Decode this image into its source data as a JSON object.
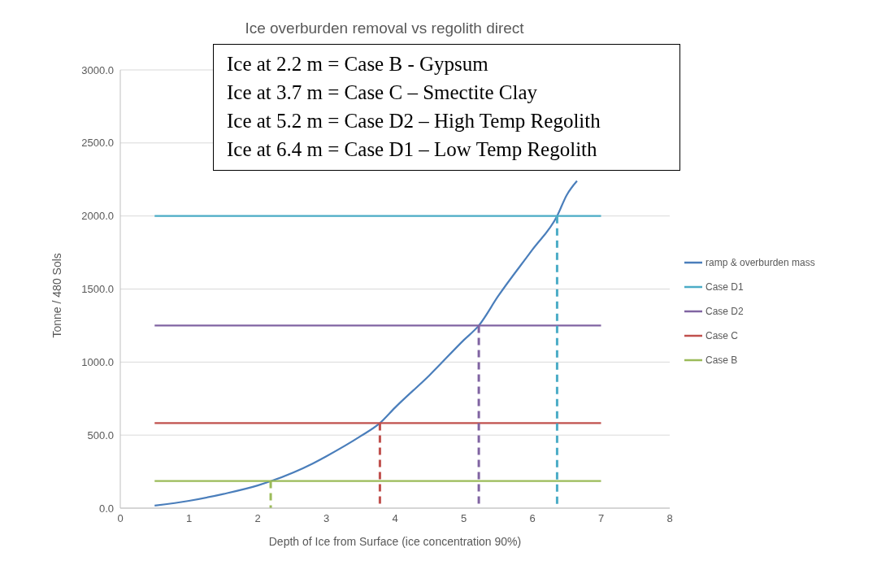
{
  "chart_data": {
    "type": "line",
    "title": "Ice overburden removal vs regolith direct",
    "xlabel": "Depth of Ice from Surface (ice concentration 90%)",
    "ylabel": "Tonne / 480 Sols",
    "xlim": [
      0,
      8
    ],
    "xticks": [
      0,
      1,
      2,
      3,
      4,
      5,
      6,
      7,
      8
    ],
    "ylim": [
      0,
      3000
    ],
    "yticks": [
      {
        "value": 0,
        "label": "0.0"
      },
      {
        "value": 500,
        "label": "500.0"
      },
      {
        "value": 1000,
        "label": "1000.0"
      },
      {
        "value": 1500,
        "label": "1500.0"
      },
      {
        "value": 2000,
        "label": "2000.0"
      },
      {
        "value": 2500,
        "label": "2500.0"
      },
      {
        "value": 3000,
        "label": "3000.0"
      }
    ],
    "grid": "y",
    "legend": "right",
    "marker": "none",
    "series": [
      {
        "name": "ramp & overburden mass",
        "color": "#4a7ebb",
        "x": [
          0.5,
          1.0,
          1.5,
          2.0,
          2.2,
          2.8,
          3.0,
          3.5,
          3.78,
          4.0,
          4.5,
          5.0,
          5.22,
          5.5,
          6.0,
          6.36,
          6.5,
          6.65
        ],
        "values": [
          17,
          50,
          97,
          155,
          186,
          305,
          355,
          493,
          582,
          688,
          909,
          1150,
          1250,
          1450,
          1769,
          2000,
          2143,
          2240
        ]
      },
      {
        "name": "Case D1",
        "color": "#4bacc6",
        "x": [
          0.5,
          7
        ],
        "values": [
          2000,
          2000
        ]
      },
      {
        "name": "Case D2",
        "color": "#8064a2",
        "x": [
          0.5,
          7
        ],
        "values": [
          1250,
          1250
        ]
      },
      {
        "name": "Case C",
        "color": "#c0504d",
        "x": [
          0.5,
          7
        ],
        "values": [
          582,
          582
        ]
      },
      {
        "name": "Case B",
        "color": "#9bbb59",
        "x": [
          0.5,
          7
        ],
        "values": [
          186,
          186
        ]
      },
      {
        "color": "#4bacc6",
        "line_style": "dashed",
        "x": [
          6.36,
          6.36
        ],
        "values": [
          2000,
          0
        ]
      },
      {
        "color": "#8064a2",
        "line_style": "dashed",
        "x": [
          5.22,
          5.22
        ],
        "values": [
          1250,
          0
        ]
      },
      {
        "color": "#c0504d",
        "line_style": "dashed",
        "x": [
          3.78,
          3.78
        ],
        "values": [
          582,
          0
        ]
      },
      {
        "color": "#9bbb59",
        "line_style": "dashed",
        "x": [
          2.19,
          2.19
        ],
        "values": [
          186,
          0
        ]
      }
    ],
    "annotations": [
      "Ice at 2.2 m = Case B - Gypsum",
      "Ice at 3.7 m = Case C – Smectite Clay",
      "Ice at 5.2 m = Case D2 – High Temp Regolith",
      "Ice at 6.4 m = Case D1 – Low Temp Regolith"
    ]
  }
}
